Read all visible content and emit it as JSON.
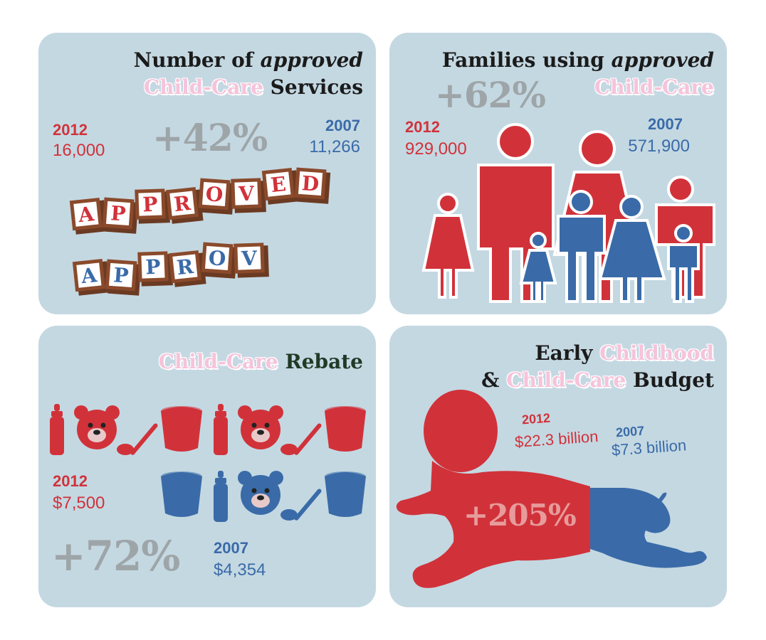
{
  "panel1": {
    "title_line1": "Number of",
    "title_line1_em": "approved",
    "title_line2_highlight": "Child-Care",
    "title_line2_rest": "Services",
    "y2012": "2012",
    "v2012": "16,000",
    "y2007": "2007",
    "v2007": "11,266",
    "change": "+42%",
    "blocks_row1": [
      "A",
      "P",
      "P",
      "R",
      "O",
      "V",
      "E",
      "D"
    ],
    "blocks_row2": [
      "A",
      "P",
      "P",
      "R",
      "O",
      "V"
    ]
  },
  "panel2": {
    "title_line1": "Families using",
    "title_line1_em": "approved",
    "title_line2_highlight": "Child-Care",
    "change": "+62%",
    "y2012": "2012",
    "v2012": "929,000",
    "y2007": "2007",
    "v2007": "571,900"
  },
  "panel3": {
    "title_highlight": "Child-Care",
    "title_rest": "Rebate",
    "y2012": "2012",
    "v2012": "$7,500",
    "y2007": "2007",
    "v2007": "$4,354",
    "change": "+72%"
  },
  "panel4": {
    "title_line1": "Early",
    "title_line1_highlight": "Childhood",
    "title_line2_amp": "&",
    "title_line2_highlight": "Child-Care",
    "title_line2_rest": "Budget",
    "y2012": "2012",
    "v2012": "$22.3 billion",
    "y2007": "2007",
    "v2007": "$7.3 billion",
    "change": "+205%"
  },
  "colors": {
    "red": "#d1323a",
    "blue": "#3a6ba8",
    "panel_bg": "#c4d8e2",
    "pink": "#f6c3da",
    "grey": "#9ea5a8"
  }
}
